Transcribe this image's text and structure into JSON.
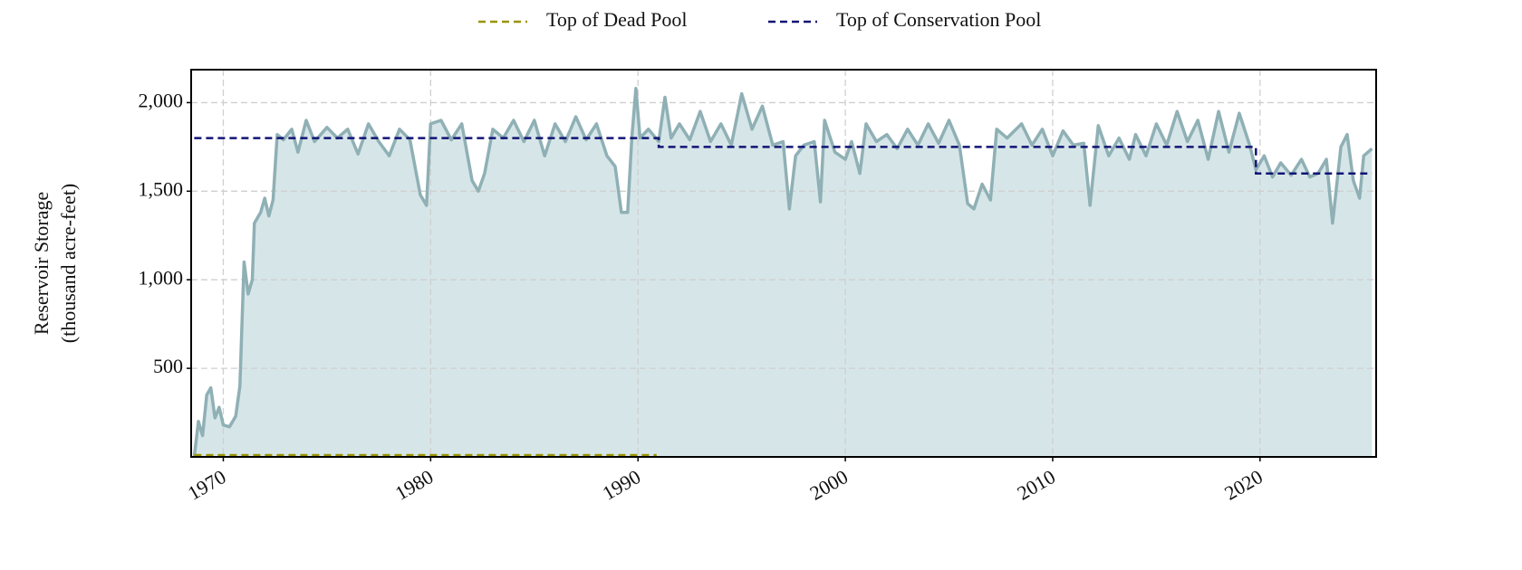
{
  "chart_data": {
    "type": "area",
    "ylabel": [
      "Reservoir Storage",
      "(thousand acre-feet)"
    ],
    "xlim": [
      1968.45,
      2025.6
    ],
    "xticks": [
      1970,
      1980,
      1990,
      2000,
      2010,
      2020
    ],
    "ylim": [
      0,
      2186
    ],
    "yticks": [
      {
        "value": 500,
        "label": "500"
      },
      {
        "value": 1000,
        "label": "1,000"
      },
      {
        "value": 1500,
        "label": "1,500"
      },
      {
        "value": 2000,
        "label": "2,000"
      }
    ],
    "grid": true,
    "legend": "top",
    "storage": {
      "color": "#8fb0b5",
      "fill": "#d6e6e8",
      "x": [
        1968.6,
        1968.8,
        1969.0,
        1969.2,
        1969.4,
        1969.6,
        1969.8,
        1970.0,
        1970.3,
        1970.6,
        1970.8,
        1971.0,
        1971.2,
        1971.4,
        1971.5,
        1971.8,
        1972.0,
        1972.2,
        1972.4,
        1972.6,
        1972.9,
        1973.3,
        1973.6,
        1974.0,
        1974.4,
        1975.0,
        1975.5,
        1976.0,
        1976.5,
        1977.0,
        1977.5,
        1978.0,
        1978.5,
        1979.0,
        1979.5,
        1979.8,
        1980.0,
        1980.5,
        1981.0,
        1981.5,
        1982.0,
        1982.3,
        1982.6,
        1983.0,
        1983.5,
        1984.0,
        1984.5,
        1985.0,
        1985.5,
        1986.0,
        1986.5,
        1987.0,
        1987.5,
        1988.0,
        1988.5,
        1988.9,
        1989.2,
        1989.5,
        1989.7,
        1989.9,
        1990.1,
        1990.5,
        1991.0,
        1991.3,
        1991.6,
        1992.0,
        1992.5,
        1993.0,
        1993.5,
        1994.0,
        1994.5,
        1995.0,
        1995.5,
        1996.0,
        1996.5,
        1997.0,
        1997.3,
        1997.6,
        1998.0,
        1998.5,
        1998.8,
        1999.0,
        1999.5,
        2000.0,
        2000.3,
        2000.7,
        2001.0,
        2001.5,
        2002.0,
        2002.5,
        2003.0,
        2003.5,
        2004.0,
        2004.5,
        2005.0,
        2005.5,
        2005.9,
        2006.2,
        2006.6,
        2007.0,
        2007.3,
        2007.8,
        2008.5,
        2009.0,
        2009.5,
        2010.0,
        2010.5,
        2011.0,
        2011.5,
        2011.8,
        2012.2,
        2012.7,
        2013.2,
        2013.7,
        2014.0,
        2014.5,
        2015.0,
        2015.5,
        2016.0,
        2016.5,
        2017.0,
        2017.5,
        2018.0,
        2018.5,
        2019.0,
        2019.5,
        2019.8,
        2020.2,
        2020.6,
        2021.0,
        2021.5,
        2022.0,
        2022.4,
        2022.8,
        2023.2,
        2023.5,
        2023.9,
        2024.2,
        2024.5,
        2024.8,
        2025.0,
        2025.4
      ],
      "values": [
        0,
        200,
        120,
        350,
        390,
        220,
        280,
        180,
        170,
        230,
        400,
        1100,
        920,
        1000,
        1320,
        1380,
        1460,
        1360,
        1450,
        1820,
        1790,
        1850,
        1720,
        1900,
        1780,
        1860,
        1800,
        1850,
        1710,
        1880,
        1780,
        1700,
        1850,
        1790,
        1480,
        1420,
        1880,
        1900,
        1790,
        1880,
        1560,
        1500,
        1600,
        1850,
        1800,
        1900,
        1780,
        1900,
        1700,
        1880,
        1780,
        1920,
        1790,
        1880,
        1700,
        1640,
        1380,
        1380,
        1800,
        2080,
        1800,
        1850,
        1780,
        2030,
        1800,
        1880,
        1790,
        1950,
        1780,
        1880,
        1760,
        2050,
        1850,
        1980,
        1760,
        1780,
        1400,
        1700,
        1760,
        1780,
        1440,
        1900,
        1720,
        1680,
        1780,
        1600,
        1880,
        1780,
        1820,
        1740,
        1850,
        1760,
        1880,
        1770,
        1900,
        1760,
        1430,
        1400,
        1540,
        1450,
        1850,
        1800,
        1880,
        1760,
        1850,
        1700,
        1840,
        1760,
        1770,
        1420,
        1870,
        1700,
        1800,
        1680,
        1820,
        1700,
        1880,
        1760,
        1950,
        1780,
        1900,
        1680,
        1950,
        1720,
        1940,
        1760,
        1620,
        1700,
        1580,
        1660,
        1590,
        1680,
        1580,
        1600,
        1680,
        1320,
        1750,
        1820,
        1560,
        1460,
        1700,
        1740
      ]
    },
    "series": [
      {
        "name": "Top of Dead Pool",
        "color": "#9a9400",
        "x": [
          1968.6,
          1990.9
        ],
        "values": [
          10,
          10
        ]
      },
      {
        "name": "Top of Conservation Pool",
        "color": "#121475",
        "x": [
          1968.6,
          1991.0,
          1991.0,
          2019.8,
          2019.8,
          2025.4
        ],
        "values": [
          1800,
          1800,
          1750,
          1750,
          1600,
          1600
        ]
      }
    ]
  }
}
